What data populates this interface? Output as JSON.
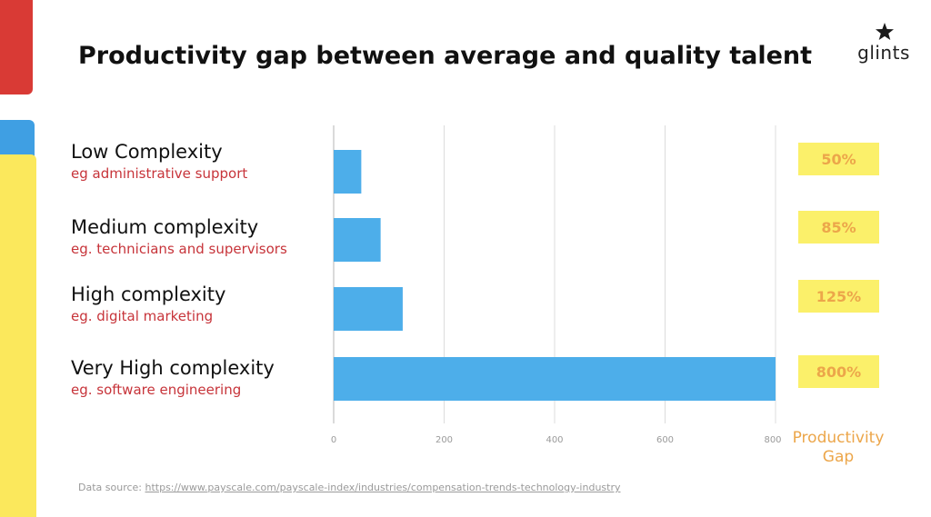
{
  "title": "Productivity gap between average and quality talent",
  "logo": {
    "text": "glints"
  },
  "colors": {
    "bar": "#4daeea",
    "grid": "#dcdcdc",
    "gap_box": "#fbf06a",
    "gap_text": "#eca64a",
    "example_text": "#c7343a"
  },
  "categories": [
    {
      "name": "Low Complexity",
      "example": "eg administrative support",
      "gap_label": "50%"
    },
    {
      "name": "Medium complexity",
      "example": "eg. technicians and supervisors",
      "gap_label": "85%"
    },
    {
      "name": "High complexity",
      "example": "eg. digital marketing",
      "gap_label": "125%"
    },
    {
      "name": "Very High complexity",
      "example": "eg. software engineering",
      "gap_label": "800%"
    }
  ],
  "gap_axis_label": "Productivity\nGap",
  "source": {
    "prefix": "Data source: ",
    "url": "https://www.payscale.com/payscale-index/industries/compensation-trends-technology-industry"
  },
  "chart_data": {
    "type": "bar",
    "orientation": "horizontal",
    "categories": [
      "Low Complexity",
      "Medium complexity",
      "High complexity",
      "Very High complexity"
    ],
    "values": [
      50,
      85,
      125,
      800
    ],
    "xlim": [
      0,
      800
    ],
    "xticks": [
      0,
      200,
      400,
      600,
      800
    ],
    "xlabel": "Productivity Gap",
    "grid": true
  }
}
